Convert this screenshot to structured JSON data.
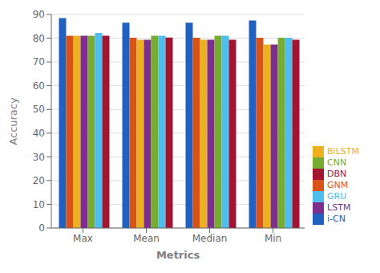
{
  "chart_data": {
    "type": "bar",
    "xlabel": "Metrics",
    "ylabel": "Accuracy",
    "categories": [
      "Max",
      "Mean",
      "Median",
      "Min"
    ],
    "series": [
      {
        "name": "i-CN",
        "color": "#2060c0",
        "values": [
          88.5,
          86.5,
          86.5,
          87.5
        ]
      },
      {
        "name": "GNM",
        "color": "#d95319",
        "values": [
          81.0,
          80.2,
          80.2,
          80.2
        ]
      },
      {
        "name": "BiLSTM",
        "color": "#edb120",
        "values": [
          81.0,
          79.3,
          79.3,
          77.3
        ]
      },
      {
        "name": "LSTM",
        "color": "#7e2f8e",
        "values": [
          81.0,
          79.3,
          79.3,
          77.3
        ]
      },
      {
        "name": "CNN",
        "color": "#77ac30",
        "values": [
          81.0,
          81.0,
          81.0,
          80.2
        ]
      },
      {
        "name": "GRU",
        "color": "#4dbeee",
        "values": [
          82.2,
          81.0,
          81.0,
          80.2
        ]
      },
      {
        "name": "DBN",
        "color": "#a2142f",
        "values": [
          81.0,
          80.3,
          79.3,
          79.3
        ]
      }
    ],
    "ylim": [
      0,
      90
    ],
    "yticks": [
      0,
      10,
      20,
      30,
      40,
      50,
      60,
      70,
      80,
      90
    ],
    "grid": true,
    "legend": "lower right"
  }
}
